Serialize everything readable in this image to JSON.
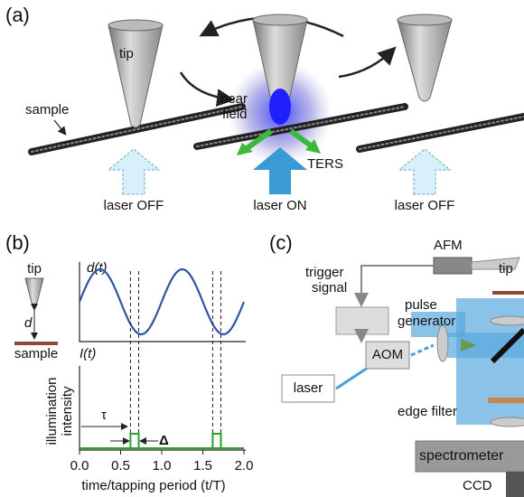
{
  "panel_a": {
    "label": "(a)",
    "tip": "tip",
    "sample": "sample",
    "near_field": [
      "near",
      "field"
    ],
    "ters": "TERS",
    "lasers": [
      "laser OFF",
      "laser ON",
      "laser OFF"
    ]
  },
  "panel_b": {
    "label": "(b)",
    "tip": "tip",
    "d": "d",
    "sample": "sample",
    "d_label": "d(t)",
    "i_label": "I(t)",
    "y_label": [
      "illumination",
      "intensity"
    ],
    "tau": "τ",
    "delta": "Δ",
    "xlim": [
      0,
      2
    ],
    "xticks": [
      {
        "value": 0,
        "label": "0.0"
      },
      {
        "value": 0.5,
        "label": "0.5"
      },
      {
        "value": 1,
        "label": "1.0"
      },
      {
        "value": 1.5,
        "label": "1.5"
      },
      {
        "value": 2,
        "label": "2.0"
      }
    ],
    "x_label": "time/tapping period (t/T)",
    "pulses": [
      [
        0.62,
        0.72
      ],
      [
        1.62,
        1.72
      ]
    ],
    "pulse_color": "#2ca02c"
  },
  "panel_c": {
    "label": "(c)",
    "afm": "AFM",
    "tip": "tip",
    "trigger": [
      "trigger",
      "signal"
    ],
    "pulse_gen": [
      "pulse",
      "generator"
    ],
    "aom": "AOM",
    "laser": "laser",
    "edge_filter": "edge filter",
    "spectrometer": "spectrometer",
    "ccd": "CCD"
  }
}
